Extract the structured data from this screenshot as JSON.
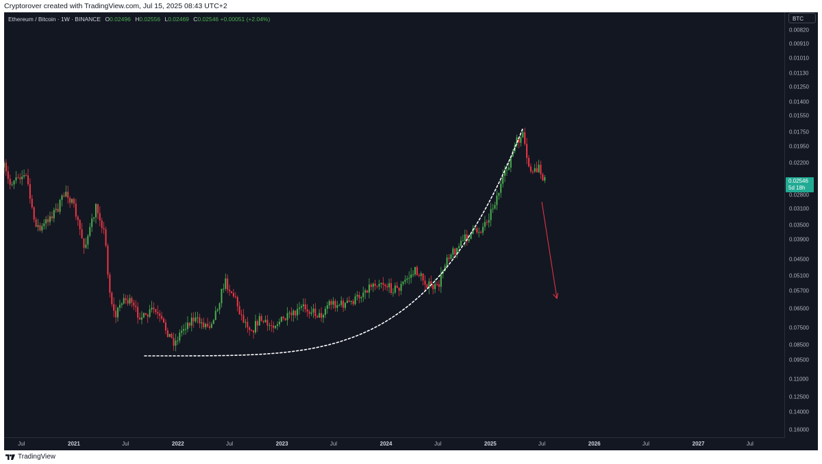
{
  "header": {
    "caption": "Cryptorover created with TradingView.com, Jul 15, 2025 08:43 UTC+2"
  },
  "legend": {
    "symbol": "Ethereum / Bitcoin · 1W · BINANCE",
    "open_label": "O",
    "open": "0.02496",
    "high_label": "H",
    "high": "0.02556",
    "low_label": "L",
    "low": "0.02469",
    "close_label": "C",
    "close": "0.02546",
    "change": "+0.00051 (+2.04%)"
  },
  "price_scale": {
    "currency_button": "BTC",
    "current_price": "0.02546",
    "countdown": "5d 18h"
  },
  "brand": {
    "name": "TradingView",
    "icon": "tradingview-logo-icon"
  },
  "colors": {
    "up": "#4caf50",
    "down": "#f23645",
    "background": "#131722",
    "tag": "#22ab94"
  },
  "chart_data": {
    "type": "candlestick",
    "symbol": "Ethereum / Bitcoin",
    "interval": "1W",
    "exchange": "BINANCE",
    "y_axis": {
      "scale": "log",
      "inverted": true,
      "range": [
        0.0072,
        0.17
      ],
      "ticks": [
        "0.00820",
        "0.00910",
        "0.01010",
        "0.01130",
        "0.01250",
        "0.01400",
        "0.01550",
        "0.01750",
        "0.01950",
        "0.02200",
        "0.02800",
        "0.03100",
        "0.03500",
        "0.03900",
        "0.04500",
        "0.05100",
        "0.05700",
        "0.06500",
        "0.07500",
        "0.08500",
        "0.09500",
        "0.11000",
        "0.12500",
        "0.14000",
        "0.16000"
      ]
    },
    "x_axis": {
      "range": [
        "2020-05-01",
        "2027-11-01"
      ],
      "ticks": [
        {
          "label": "Jul",
          "date": "2020-07-01",
          "year": false
        },
        {
          "label": "2021",
          "date": "2021-01-01",
          "year": true
        },
        {
          "label": "Jul",
          "date": "2021-07-01",
          "year": false
        },
        {
          "label": "2022",
          "date": "2022-01-01",
          "year": true
        },
        {
          "label": "Jul",
          "date": "2022-07-01",
          "year": false
        },
        {
          "label": "2023",
          "date": "2023-01-01",
          "year": true
        },
        {
          "label": "Jul",
          "date": "2023-07-01",
          "year": false
        },
        {
          "label": "2024",
          "date": "2024-01-01",
          "year": true
        },
        {
          "label": "Jul",
          "date": "2024-07-01",
          "year": false
        },
        {
          "label": "2025",
          "date": "2025-01-01",
          "year": true
        },
        {
          "label": "Jul",
          "date": "2025-07-01",
          "year": false
        },
        {
          "label": "2026",
          "date": "2026-01-01",
          "year": true
        },
        {
          "label": "Jul",
          "date": "2026-07-01",
          "year": false
        },
        {
          "label": "2027",
          "date": "2027-01-01",
          "year": true
        },
        {
          "label": "Jul",
          "date": "2027-07-01",
          "year": false
        }
      ]
    },
    "anchors": [
      {
        "date": "2020-05-01",
        "close": 0.0228
      },
      {
        "date": "2020-05-20",
        "close": 0.026
      },
      {
        "date": "2020-06-15",
        "close": 0.024
      },
      {
        "date": "2020-07-20",
        "close": 0.0245
      },
      {
        "date": "2020-08-10",
        "close": 0.033
      },
      {
        "date": "2020-09-05",
        "close": 0.0365
      },
      {
        "date": "2020-10-05",
        "close": 0.033
      },
      {
        "date": "2020-11-05",
        "close": 0.031
      },
      {
        "date": "2020-12-05",
        "close": 0.027
      },
      {
        "date": "2021-01-05",
        "close": 0.0315
      },
      {
        "date": "2021-02-05",
        "close": 0.041
      },
      {
        "date": "2021-03-01",
        "close": 0.0355
      },
      {
        "date": "2021-03-20",
        "close": 0.0305
      },
      {
        "date": "2021-04-05",
        "close": 0.0335
      },
      {
        "date": "2021-04-20",
        "close": 0.038
      },
      {
        "date": "2021-05-05",
        "close": 0.056
      },
      {
        "date": "2021-05-25",
        "close": 0.07
      },
      {
        "date": "2021-06-20",
        "close": 0.06
      },
      {
        "date": "2021-07-15",
        "close": 0.062
      },
      {
        "date": "2021-08-15",
        "close": 0.068
      },
      {
        "date": "2021-09-10",
        "close": 0.07
      },
      {
        "date": "2021-10-05",
        "close": 0.065
      },
      {
        "date": "2021-11-05",
        "close": 0.072
      },
      {
        "date": "2021-12-01",
        "close": 0.079
      },
      {
        "date": "2021-12-20",
        "close": 0.084
      },
      {
        "date": "2022-01-20",
        "close": 0.075
      },
      {
        "date": "2022-02-20",
        "close": 0.07
      },
      {
        "date": "2022-03-20",
        "close": 0.072
      },
      {
        "date": "2022-04-20",
        "close": 0.074
      },
      {
        "date": "2022-05-15",
        "close": 0.066
      },
      {
        "date": "2022-06-15",
        "close": 0.053
      },
      {
        "date": "2022-07-20",
        "close": 0.06
      },
      {
        "date": "2022-08-15",
        "close": 0.07
      },
      {
        "date": "2022-09-20",
        "close": 0.076
      },
      {
        "date": "2022-10-15",
        "close": 0.07
      },
      {
        "date": "2022-11-10",
        "close": 0.074
      },
      {
        "date": "2022-12-15",
        "close": 0.072
      },
      {
        "date": "2023-01-15",
        "close": 0.07
      },
      {
        "date": "2023-02-15",
        "close": 0.068
      },
      {
        "date": "2023-03-15",
        "close": 0.064
      },
      {
        "date": "2023-04-15",
        "close": 0.066
      },
      {
        "date": "2023-05-15",
        "close": 0.069
      },
      {
        "date": "2023-06-15",
        "close": 0.062
      },
      {
        "date": "2023-07-15",
        "close": 0.063
      },
      {
        "date": "2023-08-15",
        "close": 0.063
      },
      {
        "date": "2023-09-15",
        "close": 0.061
      },
      {
        "date": "2023-10-15",
        "close": 0.057
      },
      {
        "date": "2023-11-15",
        "close": 0.054
      },
      {
        "date": "2023-12-15",
        "close": 0.053
      },
      {
        "date": "2024-01-15",
        "close": 0.056
      },
      {
        "date": "2024-02-15",
        "close": 0.056
      },
      {
        "date": "2024-03-15",
        "close": 0.052
      },
      {
        "date": "2024-04-15",
        "close": 0.049
      },
      {
        "date": "2024-05-15",
        "close": 0.053
      },
      {
        "date": "2024-06-01",
        "close": 0.055
      },
      {
        "date": "2024-07-01",
        "close": 0.056
      },
      {
        "date": "2024-08-01",
        "close": 0.044
      },
      {
        "date": "2024-09-01",
        "close": 0.042
      },
      {
        "date": "2024-10-01",
        "close": 0.039
      },
      {
        "date": "2024-11-01",
        "close": 0.037
      },
      {
        "date": "2024-12-01",
        "close": 0.036
      },
      {
        "date": "2025-01-01",
        "close": 0.032
      },
      {
        "date": "2025-02-01",
        "close": 0.027
      },
      {
        "date": "2025-03-01",
        "close": 0.023
      },
      {
        "date": "2025-04-01",
        "close": 0.019
      },
      {
        "date": "2025-04-25",
        "close": 0.018
      },
      {
        "date": "2025-05-10",
        "close": 0.022
      },
      {
        "date": "2025-06-01",
        "close": 0.024
      },
      {
        "date": "2025-06-20",
        "close": 0.023
      },
      {
        "date": "2025-07-15",
        "close": 0.0255
      }
    ]
  }
}
